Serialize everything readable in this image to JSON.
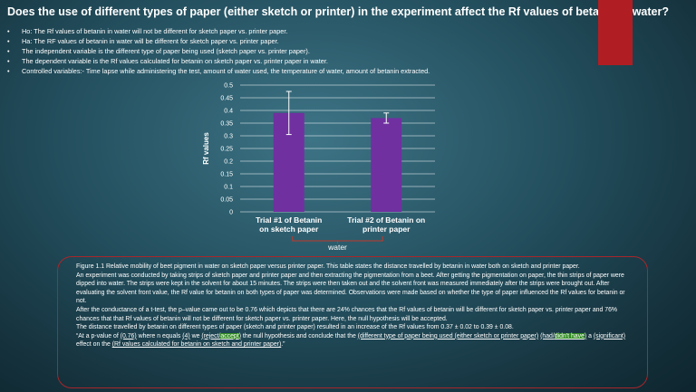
{
  "title": "Does the use of different types of paper (either sketch or printer) in the experiment affect the Rf values of betanin in water?",
  "bullets": [
    "Ho: The Rf values of betanin in water will not be different for sketch paper vs. printer paper.",
    "Ha: The RF values of betanin in water will be different for sketch paper vs. printer paper.",
    "The independent variable is the different type of paper being used (sketch paper vs. printer paper).",
    "The dependent variable is the Rf values calculated for betanin on sketch paper vs. printer paper in water.",
    "Controlled variables:- Time lapse while administering the test, amount of water used, the temperature of water, amount of betanin extracted."
  ],
  "bullet_symbol": "•",
  "chart_data": {
    "type": "bar",
    "categories": [
      "Trial #1 of Betanin on sketch paper",
      "Trial #2 of Betanin on printer paper"
    ],
    "category_lines": [
      [
        "Trial #1 of Betanin",
        "on sketch paper"
      ],
      [
        "Trial #2 of Betanin on",
        "printer paper"
      ]
    ],
    "values": [
      0.39,
      0.37
    ],
    "errors": [
      0.085,
      0.02
    ],
    "title": "",
    "xlabel": "water",
    "ylabel": "Rf values",
    "ylim": [
      0,
      0.5
    ],
    "yticks": [
      "0",
      "0.05",
      "0.1",
      "0.15",
      "0.2",
      "0.25",
      "0.3",
      "0.35",
      "0.4",
      "0.45",
      "0.5"
    ],
    "grid": true,
    "bar_color": "#7030a0"
  },
  "caption": {
    "line1": "Figure 1.1 Relative mobility of beet pigment in water on sketch paper versus printer paper. This table states the distance travelled by betanin in water both on sketch and printer paper.",
    "line2": "An experiment was conducted by taking strips of sketch paper and printer paper and then extracting the pigmentation from a beet. After getting the pigmentation on paper, the thin strips of paper were dipped into water. The strips were kept in the solvent for about 15 minutes. The strips were then taken out and the solvent front was measured immediately after the strips were brought out.  After evaluating the solvent front value, the Rf value for betanin on both types of paper was determined. Observations were made based on whether the type of paper influenced the Rf values for betanin or not.",
    "line3": "After the conductance of a t-test, the p–value came out to be 0.76 which depicts that there are 24% chances that the Rf values of betanin will be different for sketch paper vs. printer paper and 76% chances that that Rf values of betanin will not be different for sketch paper vs. printer paper. Here, the null hypothesis will be accepted.",
    "line4": "The distance travelled by betanin on different types of paper (sketch and printer paper) resulted in an increase of the Rf values from 0.37 ± 0.02 to 0.39 ± 0.08.",
    "q_open": "“At a p-value of ",
    "q_pval": "(0.76)",
    "q_2": " where n equals ",
    "q_n": "(4)",
    "q_3": " we ",
    "q_reject_pre": "(reject/",
    "q_accept": "accept",
    "q_reject_post": ")",
    "q_4": " the null hypothesis and conclude that the ",
    "q_iv": "(different type of paper being used (either sketch or printer paper)",
    "q_5": " ",
    "q_had_pre": "(had/",
    "q_didnt": "didn't have",
    "q_had_post": ")",
    "q_6": " a ",
    "q_sig": "(significant)",
    "q_7": " effect on the ",
    "q_dv": "(Rf values calculated for betanin on sketch and printer paper)",
    "q_end": ".”"
  }
}
